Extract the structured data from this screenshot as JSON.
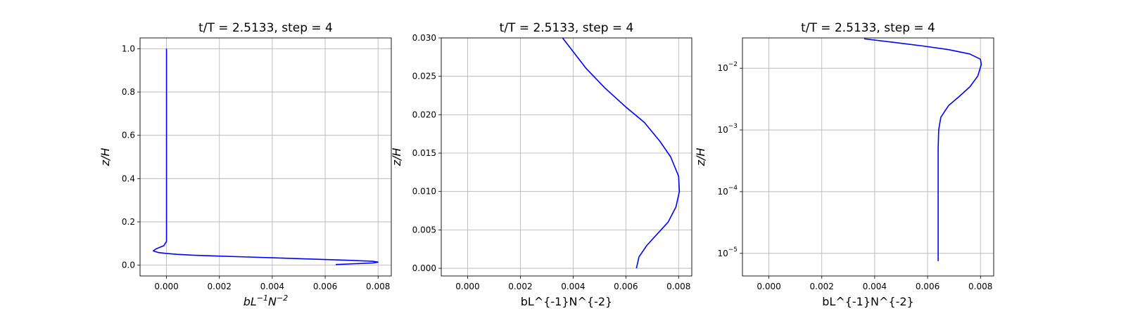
{
  "chart_data": [
    {
      "type": "line",
      "title": "t/T = 2.5133, step = 4",
      "xlabel": "bL^{-1}N^{-2}",
      "xlabel_mathtext": true,
      "ylabel": "z/H",
      "xlim": [
        -0.001,
        0.0085
      ],
      "ylim": [
        -0.05,
        1.05
      ],
      "yscale": "linear",
      "xticks": [
        0.0,
        0.002,
        0.004,
        0.006,
        0.008
      ],
      "xtick_labels": [
        "0.000",
        "0.002",
        "0.004",
        "0.006",
        "0.008"
      ],
      "yticks": [
        0.0,
        0.2,
        0.4,
        0.6,
        0.8,
        1.0
      ],
      "ytick_labels": [
        "0.0",
        "0.2",
        "0.4",
        "0.6",
        "0.8",
        "1.0"
      ],
      "grid": true,
      "color": "#0000ff",
      "series": [
        {
          "x": [
            0.0064,
            0.007,
            0.0078,
            0.008,
            0.0078,
            0.007,
            0.006,
            0.005,
            0.004,
            0.003,
            0.002,
            0.001,
            0.0004,
            0.0,
            -0.0003,
            -0.0005,
            -0.0004,
            -0.0001,
            0.0,
            0.0,
            0.0,
            0.0,
            0.0,
            0.0
          ],
          "y": [
            0.003,
            0.006,
            0.01,
            0.014,
            0.018,
            0.022,
            0.026,
            0.03,
            0.034,
            0.038,
            0.042,
            0.046,
            0.05,
            0.054,
            0.058,
            0.066,
            0.075,
            0.09,
            0.11,
            0.14,
            0.2,
            0.4,
            0.7,
            1.0
          ]
        }
      ]
    },
    {
      "type": "line",
      "title": "t/T = 2.5133, step = 4",
      "xlabel": "bL^{-1}N^{-2}",
      "xlabel_mathtext": false,
      "ylabel": "z/H",
      "xlim": [
        -0.001,
        0.0085
      ],
      "ylim": [
        -0.001,
        0.03
      ],
      "yscale": "linear",
      "xticks": [
        0.0,
        0.002,
        0.004,
        0.006,
        0.008
      ],
      "xtick_labels": [
        "0.000",
        "0.002",
        "0.004",
        "0.006",
        "0.008"
      ],
      "yticks": [
        0.0,
        0.005,
        0.01,
        0.015,
        0.02,
        0.025,
        0.03
      ],
      "ytick_labels": [
        "0.000",
        "0.005",
        "0.010",
        "0.015",
        "0.020",
        "0.025",
        "0.030"
      ],
      "grid": true,
      "color": "#0000ff",
      "series": [
        {
          "x": [
            0.0064,
            0.0065,
            0.0068,
            0.0072,
            0.0076,
            0.0079,
            0.00803,
            0.008,
            0.0077,
            0.0073,
            0.0067,
            0.006,
            0.0052,
            0.0045,
            0.0036
          ],
          "y": [
            0.0,
            0.0015,
            0.003,
            0.0045,
            0.006,
            0.008,
            0.01,
            0.012,
            0.0145,
            0.0165,
            0.019,
            0.021,
            0.0235,
            0.026,
            0.03
          ]
        }
      ]
    },
    {
      "type": "line",
      "title": "t/T = 2.5133, step = 4",
      "xlabel": "bL^{-1}N^{-2}",
      "xlabel_mathtext": false,
      "ylabel": "z/H",
      "xlim": [
        -0.001,
        0.0085
      ],
      "ylim": [
        4.3e-06,
        0.031
      ],
      "yscale": "log",
      "xticks": [
        0.0,
        0.002,
        0.004,
        0.006,
        0.008
      ],
      "xtick_labels": [
        "0.000",
        "0.002",
        "0.004",
        "0.006",
        "0.008"
      ],
      "yticks": [
        1e-05,
        0.0001,
        0.001,
        0.01
      ],
      "ytick_labels": [
        {
          "base": "10",
          "exp": "−5"
        },
        {
          "base": "10",
          "exp": "−4"
        },
        {
          "base": "10",
          "exp": "−3"
        },
        {
          "base": "10",
          "exp": "−2"
        }
      ],
      "grid": true,
      "color": "#0000ff",
      "series": [
        {
          "x": [
            0.0064,
            0.0064,
            0.0064,
            0.00642,
            0.0065,
            0.0068,
            0.0072,
            0.0076,
            0.0079,
            0.00803,
            0.008,
            0.0076,
            0.0068,
            0.0058,
            0.0048,
            0.0036
          ],
          "y": [
            7.5e-06,
            0.0001,
            0.0005,
            0.001,
            0.0016,
            0.0025,
            0.0035,
            0.005,
            0.0075,
            0.0115,
            0.014,
            0.017,
            0.02,
            0.023,
            0.026,
            0.03
          ]
        }
      ]
    }
  ]
}
